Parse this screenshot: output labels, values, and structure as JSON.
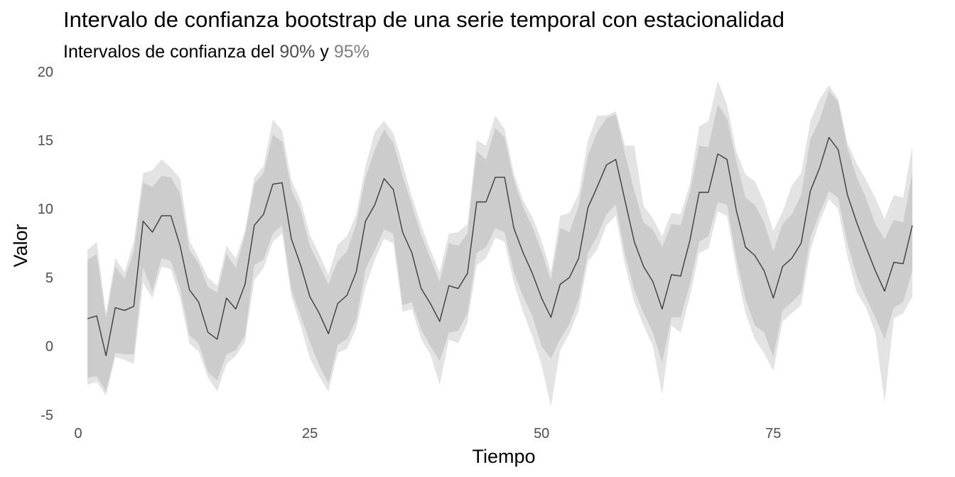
{
  "chart_data": {
    "type": "line",
    "title": "Intervalo de confianza bootstrap de una serie temporal con estacionalidad",
    "subtitle": {
      "prefix": "Intervalos de confianza del ",
      "level_90": "90%",
      "connector": " y ",
      "level_95": "95%"
    },
    "xlabel": "Tiempo",
    "ylabel": "Valor",
    "xlim": [
      -1,
      90
    ],
    "ylim": [
      -5.4,
      20.3
    ],
    "x_ticks": [
      0,
      25,
      50,
      75
    ],
    "y_ticks": [
      -5,
      0,
      5,
      10,
      15,
      20
    ],
    "x_tick_labels": [
      "0",
      "25",
      "50",
      "75"
    ],
    "y_tick_labels": [
      "-5",
      "0",
      "5",
      "10",
      "15",
      "20"
    ],
    "grid": false,
    "colors": {
      "series_line": "#3d3d3d",
      "band_90": "#cccccc",
      "band_95": "#e3e3e3",
      "subtitle_90": "#4d4d4d",
      "subtitle_95": "#7f7f7f"
    },
    "x": [
      1,
      2,
      3,
      4,
      5,
      6,
      7,
      8,
      9,
      10,
      11,
      12,
      13,
      14,
      15,
      16,
      17,
      18,
      19,
      20,
      21,
      22,
      23,
      24,
      25,
      26,
      27,
      28,
      29,
      30,
      31,
      32,
      33,
      34,
      35,
      36,
      37,
      38,
      39,
      40,
      41,
      42,
      43,
      44,
      45,
      46,
      47,
      48,
      49,
      50,
      51,
      52,
      53,
      54,
      55,
      56,
      57,
      58,
      59,
      60,
      61,
      62,
      63,
      64,
      65,
      66,
      67,
      68,
      69,
      70,
      71,
      72,
      73,
      74,
      75,
      76,
      77,
      78,
      79,
      80,
      81,
      82,
      83,
      84,
      85,
      86,
      87,
      88,
      89,
      90
    ],
    "series": [
      {
        "role": "estimate",
        "values": [
          2.0,
          2.2,
          -0.7,
          2.8,
          2.6,
          2.9,
          9.1,
          8.3,
          9.5,
          9.5,
          7.3,
          4.1,
          3.2,
          1.0,
          0.5,
          3.5,
          2.7,
          4.5,
          8.8,
          9.6,
          11.8,
          11.9,
          7.8,
          5.9,
          3.6,
          2.4,
          0.9,
          3.1,
          3.7,
          5.4,
          9.1,
          10.3,
          12.2,
          11.4,
          8.3,
          6.8,
          4.2,
          3.1,
          1.8,
          4.4,
          4.2,
          5.3,
          10.5,
          10.5,
          12.3,
          12.3,
          8.6,
          6.8,
          5.3,
          3.5,
          2.1,
          4.5,
          5.0,
          6.4,
          10.1,
          11.6,
          13.2,
          13.6,
          10.6,
          7.6,
          5.8,
          4.7,
          2.7,
          5.2,
          5.1,
          7.7,
          11.2,
          11.2,
          14.0,
          13.6,
          9.9,
          7.2,
          6.6,
          5.5,
          3.5,
          5.8,
          6.4,
          7.5,
          11.3,
          13.0,
          15.2,
          14.3,
          11.0,
          9.0,
          7.2,
          5.5,
          4.0,
          6.1,
          6.0,
          8.8
        ]
      }
    ],
    "bands": {
      "ci_90": {
        "lower": [
          -2.3,
          -2.2,
          -3.3,
          -0.5,
          -0.6,
          -0.6,
          5.7,
          4.0,
          6.4,
          6.2,
          4.2,
          0.8,
          0.2,
          -1.9,
          -2.5,
          -0.6,
          -0.3,
          0.8,
          5.9,
          6.3,
          8.2,
          8.8,
          4.1,
          2.2,
          0.3,
          -1.4,
          -2.7,
          0.1,
          0.5,
          1.9,
          5.6,
          7.0,
          8.5,
          8.2,
          3.0,
          3.2,
          1.2,
          0.0,
          -1.1,
          1.0,
          1.1,
          2.4,
          6.8,
          7.2,
          8.6,
          8.3,
          5.4,
          3.6,
          2.2,
          0.0,
          -0.9,
          0.5,
          1.6,
          3.4,
          6.8,
          8.0,
          9.6,
          10.3,
          6.7,
          4.1,
          2.4,
          1.0,
          -1.2,
          2.1,
          2.1,
          4.5,
          7.6,
          8.0,
          10.5,
          10.3,
          6.4,
          3.4,
          1.5,
          1.0,
          -0.8,
          2.6,
          3.2,
          3.9,
          7.9,
          9.7,
          11.3,
          10.8,
          7.5,
          5.1,
          3.5,
          2.1,
          0.5,
          2.8,
          3.2,
          5.5
        ],
        "upper": [
          6.3,
          6.7,
          2.0,
          5.8,
          4.9,
          6.9,
          11.9,
          11.6,
          12.4,
          12.3,
          11.1,
          7.0,
          6.0,
          4.3,
          3.9,
          6.7,
          5.7,
          8.1,
          11.8,
          12.6,
          15.4,
          14.9,
          11.4,
          9.9,
          7.3,
          5.9,
          4.5,
          6.2,
          6.9,
          8.9,
          12.3,
          14.3,
          15.8,
          14.8,
          12.4,
          10.3,
          8.1,
          6.4,
          4.7,
          7.5,
          7.3,
          8.2,
          14.2,
          13.6,
          15.9,
          15.2,
          12.1,
          10.1,
          8.7,
          6.9,
          4.8,
          8.6,
          8.3,
          10.2,
          13.9,
          15.6,
          16.6,
          16.9,
          14.0,
          11.3,
          9.0,
          8.5,
          7.2,
          8.9,
          8.8,
          11.2,
          14.6,
          14.5,
          17.6,
          16.6,
          13.5,
          10.8,
          10.3,
          9.0,
          6.9,
          8.9,
          9.6,
          11.0,
          15.1,
          16.5,
          18.6,
          17.8,
          14.4,
          12.3,
          10.8,
          8.9,
          7.8,
          9.2,
          9.0,
          12.6
        ]
      },
      "ci_95": {
        "lower": [
          -2.8,
          -2.6,
          -3.6,
          -0.8,
          -1.0,
          -1.3,
          4.6,
          3.5,
          5.8,
          5.6,
          3.5,
          0.2,
          -0.4,
          -2.3,
          -3.3,
          -1.3,
          -0.7,
          0.3,
          4.8,
          5.7,
          7.6,
          8.2,
          3.6,
          1.5,
          -0.9,
          -2.2,
          -3.3,
          -0.5,
          -0.2,
          1.3,
          4.3,
          6.3,
          7.8,
          7.5,
          2.5,
          2.7,
          0.5,
          -0.6,
          -2.8,
          0.5,
          0.2,
          1.7,
          5.9,
          6.4,
          7.9,
          7.6,
          4.6,
          2.5,
          0.7,
          -1.4,
          -4.4,
          -0.3,
          0.9,
          2.6,
          6.2,
          7.0,
          8.8,
          9.5,
          5.9,
          3.2,
          1.5,
          0.0,
          -3.5,
          1.5,
          1.0,
          3.6,
          6.8,
          7.1,
          9.8,
          9.5,
          5.6,
          2.4,
          0.5,
          -0.5,
          -1.8,
          1.8,
          2.4,
          3.0,
          7.0,
          9.1,
          10.7,
          10.0,
          6.5,
          3.9,
          2.8,
          1.0,
          -4.1,
          2.0,
          2.4,
          3.6
        ],
        "upper": [
          7.0,
          7.6,
          2.4,
          6.4,
          5.4,
          7.6,
          12.6,
          12.8,
          13.6,
          13.0,
          12.2,
          7.7,
          6.4,
          5.0,
          4.4,
          7.3,
          6.4,
          8.4,
          12.3,
          13.1,
          16.5,
          15.7,
          12.1,
          10.6,
          8.1,
          6.7,
          5.2,
          7.4,
          8.0,
          9.6,
          13.1,
          15.6,
          16.4,
          15.5,
          13.3,
          10.9,
          8.8,
          7.0,
          5.4,
          8.2,
          8.3,
          8.9,
          15.0,
          14.6,
          16.8,
          15.8,
          12.6,
          10.6,
          9.4,
          7.7,
          5.4,
          9.5,
          9.7,
          11.1,
          15.0,
          16.8,
          16.8,
          17.1,
          14.6,
          14.6,
          10.2,
          9.3,
          8.0,
          9.7,
          9.6,
          11.8,
          16.0,
          16.4,
          19.3,
          17.6,
          14.2,
          12.5,
          12.0,
          10.5,
          8.4,
          9.8,
          11.7,
          12.6,
          16.4,
          18.0,
          19.0,
          18.0,
          14.8,
          13.3,
          12.1,
          10.8,
          9.3,
          11.0,
          10.8,
          14.6
        ]
      }
    }
  }
}
